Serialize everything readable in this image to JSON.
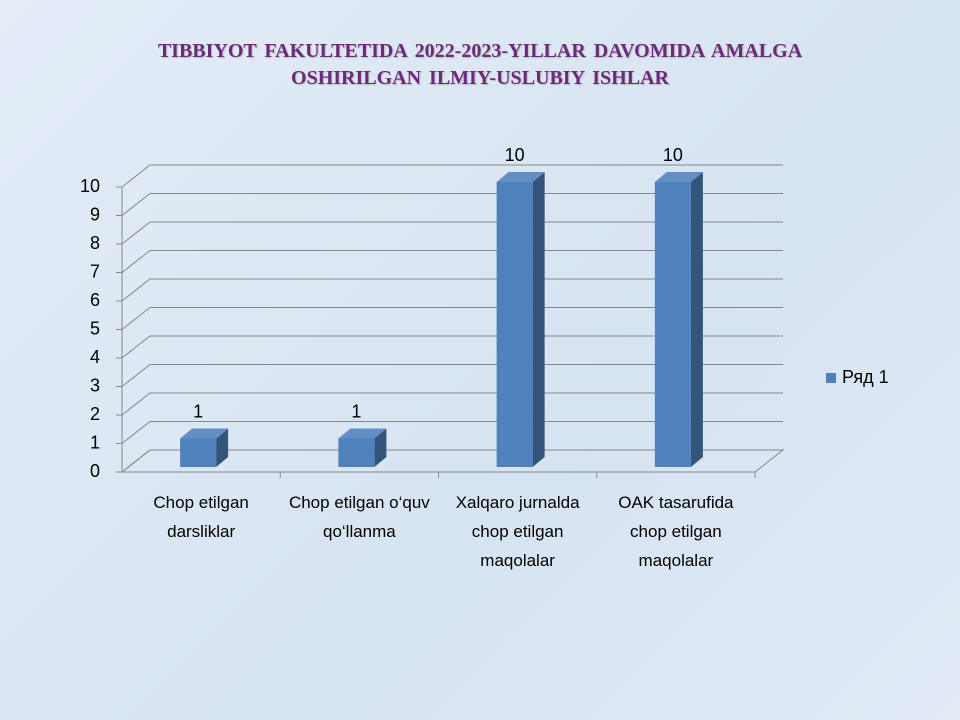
{
  "chart_data": {
    "type": "bar",
    "title": "TIBBIYOT FAKULTETIDA 2022-2023-YILLAR DAVOMIDA AMALGA OSHIRILGAN ILMIY-USLUBIY ISHLAR",
    "categories": [
      "Chop etilgan darsliklar",
      "Chop etilgan o‘quv qo‘llanma",
      "Xalqaro jurnalda chop etilgan maqolalar",
      "OAK tasarufida chop etilgan maqolalar"
    ],
    "series": [
      {
        "name": "Ряд 1",
        "color": "#4f81bd",
        "values": [
          1,
          1,
          10,
          10
        ]
      }
    ],
    "ylim": [
      0,
      10
    ],
    "yticks": [
      0,
      1,
      2,
      3,
      4,
      5,
      6,
      7,
      8,
      9,
      10
    ],
    "grid": true,
    "legend": "right"
  }
}
